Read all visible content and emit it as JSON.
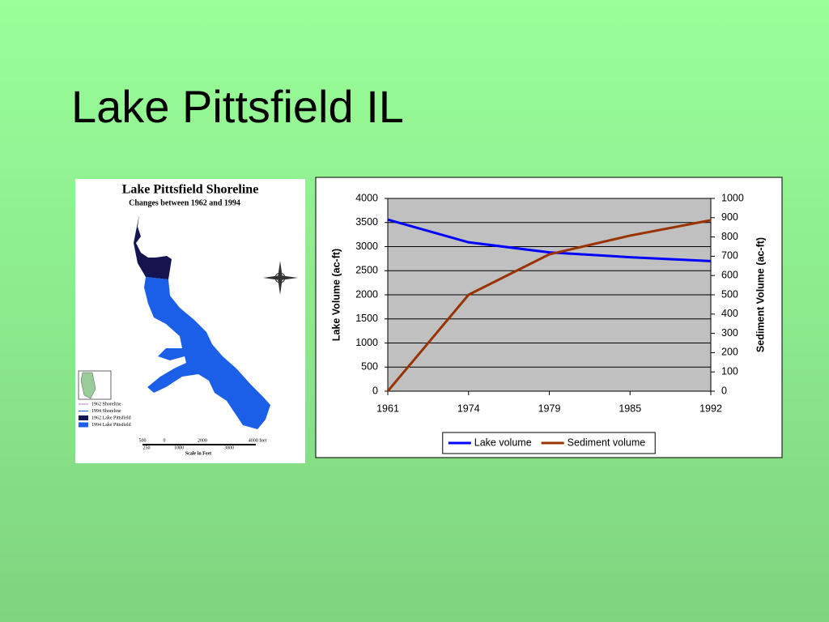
{
  "title": "Lake Pittsfield IL",
  "map": {
    "title": "Lake Pittsfield Shoreline",
    "subtitle": "Changes between 1962 and 1994",
    "legend": [
      "1962 Shoreline",
      "1994 Shoreline",
      "1962 Lake Pittsfield",
      "1994 Lake Pittsfield"
    ],
    "scale_top": [
      "500",
      "0",
      "2000",
      "4000 feet"
    ],
    "scale_bottom": [
      "250",
      "1000",
      "3000"
    ],
    "scale_label": "Scale in Feet"
  },
  "chart_data": {
    "type": "line",
    "categories": [
      "1961",
      "1974",
      "1979",
      "1985",
      "1992"
    ],
    "series": [
      {
        "name": "Lake volume",
        "color": "#0000ff",
        "values": [
          3560,
          3090,
          2880,
          2780,
          2700
        ]
      },
      {
        "name": "Sediment volume",
        "color": "#993300",
        "axis": "y2",
        "values": [
          0,
          500,
          710,
          807,
          887
        ]
      }
    ],
    "ylabel": "Lake Volume (ac-ft)",
    "y2label": "Sediment Volume (ac-ft)",
    "ylim": [
      0,
      4000
    ],
    "yticks": [
      0,
      500,
      1000,
      1500,
      2000,
      2500,
      3000,
      3500,
      4000
    ],
    "y2lim": [
      0,
      1000
    ],
    "y2ticks": [
      0,
      100,
      200,
      300,
      400,
      500,
      600,
      700,
      800,
      900,
      1000
    ],
    "grid": true,
    "legend": "bottom"
  }
}
